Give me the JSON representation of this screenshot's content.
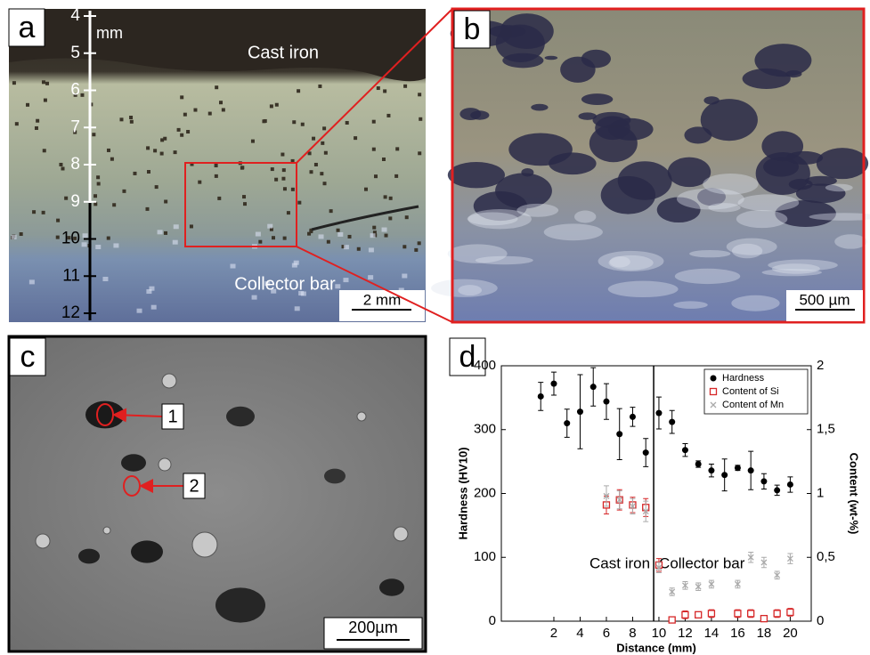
{
  "panels": {
    "a": {
      "letter": "a",
      "unit": "mm",
      "ruler": [
        4,
        5,
        6,
        7,
        8,
        9,
        10,
        11,
        12
      ],
      "top_label": "Cast iron",
      "bottom_label": "Collector bar",
      "scale": "2 mm"
    },
    "b": {
      "letter": "b",
      "scale": "500 µm"
    },
    "c": {
      "letter": "c",
      "marker_1": "1",
      "marker_2": "2",
      "scale": "200µm"
    }
  },
  "chart_data": {
    "type": "scatter",
    "panel_letter": "d",
    "x_label": "Distance (mm)",
    "y_label": "Hardness (HV10)",
    "y2_label": "Content (wt-%)",
    "xlim": [
      -2,
      21.6
    ],
    "xticks": [
      2,
      4,
      6,
      8,
      10,
      12,
      14,
      16,
      18,
      20
    ],
    "ylim": [
      0,
      400
    ],
    "yticks": [
      0,
      100,
      200,
      300,
      400
    ],
    "y2lim": [
      0,
      2
    ],
    "y2ticks": [
      0,
      {
        "value": 0.5,
        "label": "0,5"
      },
      1,
      {
        "value": 1.5,
        "label": "1,5"
      },
      2
    ],
    "divider_x": 9.6,
    "left_annotation": "Cast iron",
    "right_annotation": "Collector bar",
    "legend": "upper right",
    "series": [
      {
        "name": "Hardness",
        "color": "#000000",
        "marker": "circle",
        "x": [
          1,
          2,
          3,
          4,
          5,
          6,
          7,
          8,
          9,
          10,
          11,
          12,
          13,
          14,
          15,
          16,
          17,
          18,
          19,
          20
        ],
        "values": [
          352,
          372,
          310,
          328,
          367,
          344,
          293,
          320,
          264,
          326,
          312,
          268,
          246,
          236,
          229,
          240,
          236,
          219,
          205,
          214
        ],
        "errors": [
          22,
          18,
          22,
          58,
          30,
          28,
          40,
          15,
          22,
          25,
          18,
          10,
          5,
          10,
          25,
          4,
          30,
          12,
          8,
          12
        ]
      },
      {
        "name": "Content of Si",
        "color": "#d62728",
        "marker": "square",
        "axis": "y2",
        "x": [
          6,
          7,
          8,
          9,
          10,
          11,
          12,
          13,
          14,
          16,
          17,
          18,
          19,
          20
        ],
        "values": [
          0.91,
          0.95,
          0.91,
          0.89,
          0.44,
          0.01,
          0.05,
          0.05,
          0.06,
          0.06,
          0.06,
          0.02,
          0.06,
          0.07
        ],
        "errors": [
          0.07,
          0.08,
          0.06,
          0.07,
          0.05,
          0.02,
          0.03,
          0.02,
          0.03,
          0.03,
          0.03,
          0.02,
          0.03,
          0.03
        ]
      },
      {
        "name": "Content of Mn",
        "color": "#aaaaaa",
        "marker": "x",
        "axis": "y2",
        "x": [
          6,
          7,
          8,
          9,
          10,
          11,
          12,
          13,
          14,
          16,
          17,
          18,
          19,
          20
        ],
        "values": [
          0.98,
          0.95,
          0.9,
          0.86,
          0.42,
          0.23,
          0.28,
          0.27,
          0.29,
          0.29,
          0.5,
          0.46,
          0.36,
          0.49
        ],
        "errors": [
          0.08,
          0.07,
          0.06,
          0.08,
          0.04,
          0.03,
          0.03,
          0.03,
          0.03,
          0.03,
          0.04,
          0.04,
          0.03,
          0.04
        ]
      }
    ]
  }
}
